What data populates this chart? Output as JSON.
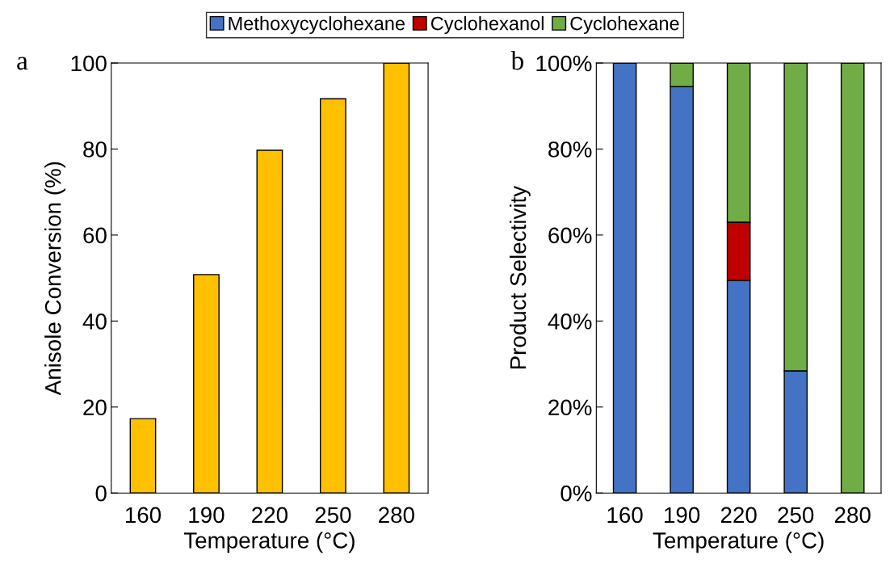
{
  "chart_data": [
    {
      "type": "bar",
      "xlabel": "Temperature (°C)",
      "ylabel": "Anisole Conversion (%)",
      "annotations": [
        "a"
      ],
      "categories": [
        "160",
        "190",
        "220",
        "250",
        "280"
      ],
      "values": [
        17.3,
        50.8,
        79.7,
        91.7,
        100
      ],
      "color": "#ffc000",
      "ylim": [
        0,
        100
      ],
      "yticks": [
        0,
        20,
        40,
        60,
        80,
        100
      ],
      "grid": false,
      "legend": false
    },
    {
      "type": "bar",
      "stacked": true,
      "xlabel": "Temperature (°C)",
      "ylabel": "Product Selectivity",
      "annotations": [
        "b"
      ],
      "categories": [
        "160",
        "190",
        "220",
        "250",
        "280"
      ],
      "series": [
        {
          "name": "Methoxycyclohexane",
          "color": "#4472c4",
          "values": [
            100,
            94.5,
            49.4,
            28.4,
            null
          ]
        },
        {
          "name": "Cyclohexanol",
          "color": "#c00000",
          "values": [
            null,
            null,
            13.6,
            null,
            null
          ]
        },
        {
          "name": "Cyclohexane",
          "color": "#70ad47",
          "values": [
            null,
            5.5,
            37.0,
            71.6,
            100
          ]
        }
      ],
      "ylim": [
        0,
        100
      ],
      "yticks": [
        {
          "value": 0,
          "label": "0%"
        },
        {
          "value": 20,
          "label": "20%"
        },
        {
          "value": 40,
          "label": "40%"
        },
        {
          "value": 60,
          "label": "60%"
        },
        {
          "value": 80,
          "label": "80%"
        },
        {
          "value": 100,
          "label": "100%"
        }
      ],
      "grid": false,
      "legend": "top"
    }
  ]
}
